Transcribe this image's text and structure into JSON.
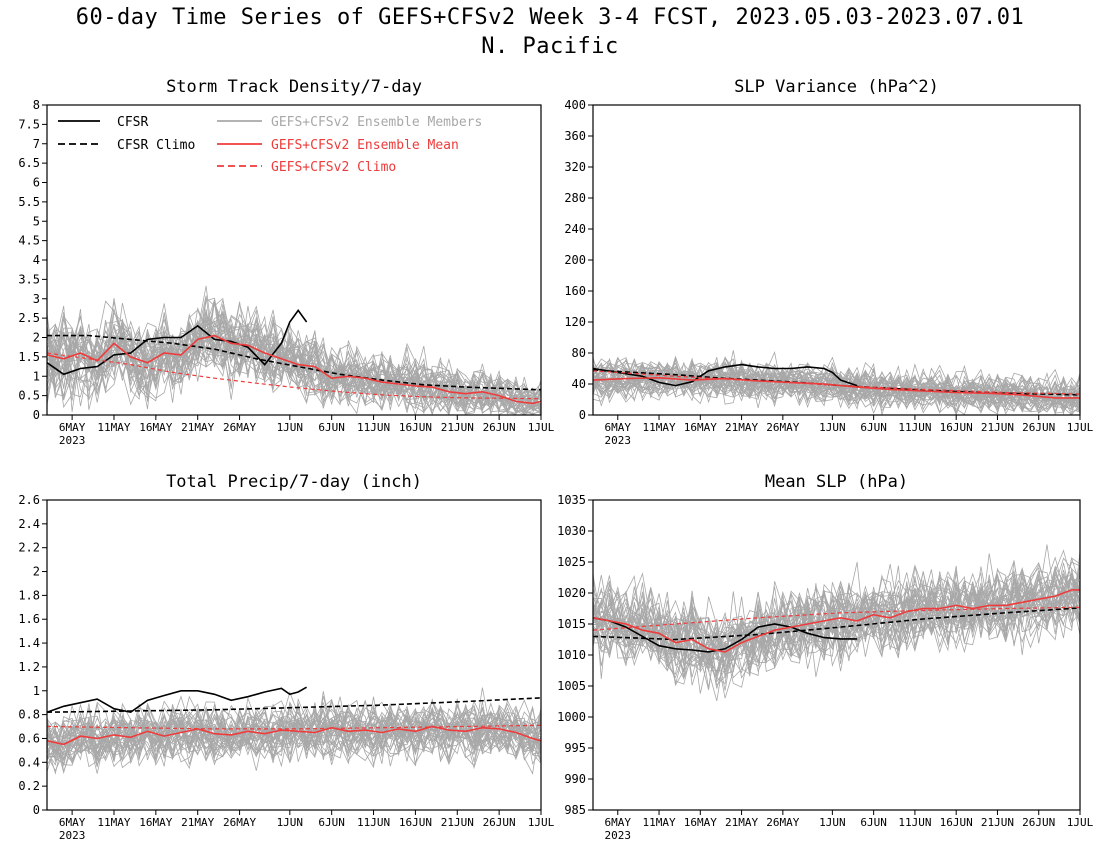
{
  "title_line1": "60-day Time Series of GEFS+CFSv2 Week 3-4 FCST, 2023.05.03-2023.07.01",
  "title_line2": "N. Pacific",
  "colors": {
    "cfsr": "#000000",
    "members": "#a8a8a8",
    "ens_mean": "#ee3b3b",
    "gefs_climo": "#ee3b3b",
    "axis": "#000000"
  },
  "x_axis": {
    "ticks": [
      {
        "day": 3,
        "label": "6MAY"
      },
      {
        "day": 8,
        "label": "11MAY"
      },
      {
        "day": 13,
        "label": "16MAY"
      },
      {
        "day": 18,
        "label": "21MAY"
      },
      {
        "day": 23,
        "label": "26MAY"
      },
      {
        "day": 29,
        "label": "1JUN"
      },
      {
        "day": 34,
        "label": "6JUN"
      },
      {
        "day": 39,
        "label": "11JUN"
      },
      {
        "day": 44,
        "label": "16JUN"
      },
      {
        "day": 49,
        "label": "21JUN"
      },
      {
        "day": 54,
        "label": "26JUN"
      },
      {
        "day": 59,
        "label": "1JUL"
      }
    ],
    "year_label": "2023",
    "range_days": [
      0,
      59
    ],
    "start_date": "2023-05-03"
  },
  "legend": {
    "cfsr": "CFSR",
    "cfsr_climo": "CFSR Climo",
    "members": "GEFS+CFSv2 Ensemble Members",
    "ens_mean": "GEFS+CFSv2 Ensemble Mean",
    "gefs_climo": "GEFS+CFSv2 Climo"
  },
  "chart_data": [
    {
      "type": "line",
      "title": "Storm Track Density/7-day",
      "ylim": [
        0,
        8
      ],
      "y_ticks": [
        "0",
        "0.5",
        "1",
        "1.5",
        "2",
        "2.5",
        "3",
        "3.5",
        "4",
        "4.5",
        "5",
        "5.5",
        "6",
        "6.5",
        "7",
        "7.5",
        "8"
      ],
      "member_count": 40,
      "series": [
        {
          "name": "CFSR",
          "style": "solid-black",
          "x": [
            0,
            2,
            4,
            6,
            8,
            10,
            12,
            14,
            16,
            18,
            20,
            22,
            24,
            26,
            28,
            29,
            30,
            31
          ],
          "y": [
            1.35,
            1.05,
            1.2,
            1.25,
            1.55,
            1.6,
            1.95,
            2.0,
            2.0,
            2.3,
            1.95,
            1.9,
            1.75,
            1.3,
            1.85,
            2.4,
            2.7,
            2.4
          ]
        },
        {
          "name": "CFSR Climo",
          "style": "dashed-black",
          "x": [
            0,
            5,
            10,
            15,
            20,
            25,
            30,
            35,
            40,
            45,
            50,
            55,
            59
          ],
          "y": [
            2.05,
            2.05,
            1.95,
            1.85,
            1.7,
            1.45,
            1.25,
            1.05,
            0.9,
            0.78,
            0.72,
            0.68,
            0.65
          ]
        },
        {
          "name": "GEFS+CFSv2 Ensemble Mean",
          "style": "solid-red",
          "x": [
            0,
            2,
            4,
            6,
            8,
            10,
            12,
            14,
            16,
            18,
            20,
            22,
            24,
            26,
            28,
            30,
            32,
            34,
            36,
            38,
            40,
            42,
            44,
            46,
            48,
            50,
            52,
            54,
            56,
            58,
            59
          ],
          "y": [
            1.55,
            1.45,
            1.6,
            1.4,
            1.85,
            1.5,
            1.35,
            1.6,
            1.55,
            1.95,
            2.05,
            1.85,
            1.8,
            1.6,
            1.45,
            1.3,
            1.25,
            0.95,
            1.0,
            0.95,
            0.85,
            0.8,
            0.75,
            0.72,
            0.6,
            0.55,
            0.6,
            0.5,
            0.35,
            0.3,
            0.35
          ]
        },
        {
          "name": "GEFS+CFSv2 Climo",
          "style": "dashed-red",
          "x": [
            0,
            5,
            10,
            15,
            20,
            25,
            30,
            35,
            40,
            45,
            50,
            55,
            59
          ],
          "y": [
            1.6,
            1.45,
            1.3,
            1.1,
            0.95,
            0.82,
            0.7,
            0.6,
            0.52,
            0.47,
            0.44,
            0.43,
            0.42
          ]
        }
      ]
    },
    {
      "type": "line",
      "title": "SLP Variance (hPa^2)",
      "ylim": [
        0,
        400
      ],
      "y_ticks": [
        "0",
        "40",
        "80",
        "120",
        "160",
        "200",
        "240",
        "280",
        "320",
        "360",
        "400"
      ],
      "member_count": 40,
      "series": [
        {
          "name": "CFSR",
          "style": "solid-black",
          "x": [
            0,
            3,
            6,
            8,
            10,
            12,
            14,
            16,
            18,
            20,
            22,
            24,
            26,
            28,
            29,
            30,
            32
          ],
          "y": [
            60,
            55,
            50,
            42,
            38,
            43,
            57,
            62,
            65,
            62,
            60,
            60,
            62,
            60,
            55,
            45,
            38
          ]
        },
        {
          "name": "CFSR Climo",
          "style": "dashed-black",
          "x": [
            0,
            5,
            10,
            15,
            20,
            25,
            30,
            35,
            40,
            45,
            50,
            55,
            59
          ],
          "y": [
            58,
            55,
            52,
            48,
            45,
            42,
            38,
            35,
            32,
            30,
            28,
            27,
            26
          ]
        },
        {
          "name": "GEFS+CFSv2 Ensemble Mean",
          "style": "solid-red",
          "x": [
            0,
            4,
            8,
            12,
            16,
            20,
            24,
            28,
            32,
            36,
            40,
            44,
            48,
            52,
            56,
            59
          ],
          "y": [
            45,
            47,
            48,
            45,
            47,
            44,
            42,
            40,
            36,
            33,
            31,
            29,
            28,
            26,
            22,
            22
          ]
        },
        {
          "name": "GEFS+CFSv2 Climo",
          "style": "dashed-red",
          "x": [
            0,
            10,
            20,
            30,
            40,
            50,
            59
          ],
          "y": [
            57,
            50,
            44,
            38,
            33,
            29,
            27
          ]
        }
      ]
    },
    {
      "type": "line",
      "title": "Total Precip/7-day (inch)",
      "ylim": [
        0,
        2.6
      ],
      "y_ticks": [
        "0",
        "0.2",
        "0.4",
        "0.6",
        "0.8",
        "1",
        "1.2",
        "1.4",
        "1.6",
        "1.8",
        "2",
        "2.2",
        "2.4",
        "2.6"
      ],
      "member_count": 40,
      "series": [
        {
          "name": "CFSR",
          "style": "solid-black",
          "x": [
            0,
            2,
            4,
            6,
            8,
            10,
            12,
            14,
            16,
            18,
            20,
            22,
            24,
            26,
            28,
            29,
            30,
            31
          ],
          "y": [
            0.82,
            0.87,
            0.9,
            0.93,
            0.85,
            0.82,
            0.92,
            0.96,
            1.0,
            1.0,
            0.97,
            0.92,
            0.95,
            0.99,
            1.02,
            0.97,
            0.99,
            1.03
          ]
        },
        {
          "name": "CFSR Climo",
          "style": "dashed-black",
          "x": [
            0,
            10,
            20,
            30,
            40,
            50,
            59
          ],
          "y": [
            0.82,
            0.83,
            0.84,
            0.86,
            0.88,
            0.91,
            0.94
          ]
        },
        {
          "name": "GEFS+CFSv2 Ensemble Mean",
          "style": "solid-red",
          "x": [
            0,
            2,
            4,
            6,
            8,
            10,
            12,
            14,
            16,
            18,
            20,
            22,
            24,
            26,
            28,
            30,
            32,
            34,
            36,
            38,
            40,
            42,
            44,
            46,
            48,
            50,
            52,
            54,
            56,
            58,
            59
          ],
          "y": [
            0.58,
            0.55,
            0.62,
            0.6,
            0.63,
            0.61,
            0.66,
            0.62,
            0.65,
            0.68,
            0.64,
            0.63,
            0.66,
            0.64,
            0.67,
            0.66,
            0.65,
            0.69,
            0.66,
            0.67,
            0.65,
            0.68,
            0.66,
            0.7,
            0.67,
            0.66,
            0.69,
            0.68,
            0.65,
            0.6,
            0.58
          ]
        },
        {
          "name": "GEFS+CFSv2 Climo",
          "style": "dashed-red",
          "x": [
            0,
            10,
            20,
            30,
            40,
            50,
            59
          ],
          "y": [
            0.7,
            0.69,
            0.68,
            0.68,
            0.69,
            0.7,
            0.71
          ]
        }
      ]
    },
    {
      "type": "line",
      "title": "Mean SLP (hPa)",
      "ylim": [
        985,
        1035
      ],
      "y_ticks": [
        "985",
        "990",
        "995",
        "1000",
        "1005",
        "1010",
        "1015",
        "1020",
        "1025",
        "1030",
        "1035"
      ],
      "member_count": 40,
      "series": [
        {
          "name": "CFSR",
          "style": "solid-black",
          "x": [
            0,
            2,
            4,
            6,
            8,
            10,
            12,
            14,
            16,
            18,
            20,
            22,
            24,
            26,
            28,
            30,
            32
          ],
          "y": [
            1016,
            1015.5,
            1014.5,
            1013,
            1011.5,
            1011,
            1010.8,
            1010.5,
            1011,
            1012.5,
            1014.5,
            1015,
            1014.5,
            1013.5,
            1012.8,
            1012.6,
            1012.6
          ]
        },
        {
          "name": "CFSR Climo",
          "style": "dashed-black",
          "x": [
            0,
            10,
            20,
            30,
            40,
            50,
            59
          ],
          "y": [
            1013,
            1012.5,
            1013.3,
            1014.5,
            1015.8,
            1016.8,
            1017.6
          ]
        },
        {
          "name": "GEFS+CFSv2 Ensemble Mean",
          "style": "solid-red",
          "x": [
            0,
            2,
            4,
            6,
            8,
            10,
            12,
            14,
            16,
            18,
            20,
            22,
            24,
            26,
            28,
            30,
            32,
            34,
            36,
            38,
            40,
            42,
            44,
            46,
            48,
            50,
            52,
            54,
            56,
            58,
            59
          ],
          "y": [
            1016,
            1015.5,
            1015,
            1014,
            1013.5,
            1012,
            1012.5,
            1011,
            1010.5,
            1012,
            1013,
            1014,
            1014.5,
            1015,
            1015.5,
            1016,
            1015.5,
            1016.5,
            1016,
            1017,
            1017.5,
            1017.5,
            1018,
            1017.5,
            1018,
            1018,
            1018.5,
            1019,
            1019.5,
            1020.5,
            1020.5
          ]
        },
        {
          "name": "GEFS+CFSv2 Climo",
          "style": "dashed-red",
          "x": [
            0,
            10,
            20,
            30,
            40,
            50,
            59
          ],
          "y": [
            1014,
            1015,
            1016,
            1016.8,
            1017.2,
            1017.5,
            1017.7
          ]
        }
      ]
    }
  ]
}
